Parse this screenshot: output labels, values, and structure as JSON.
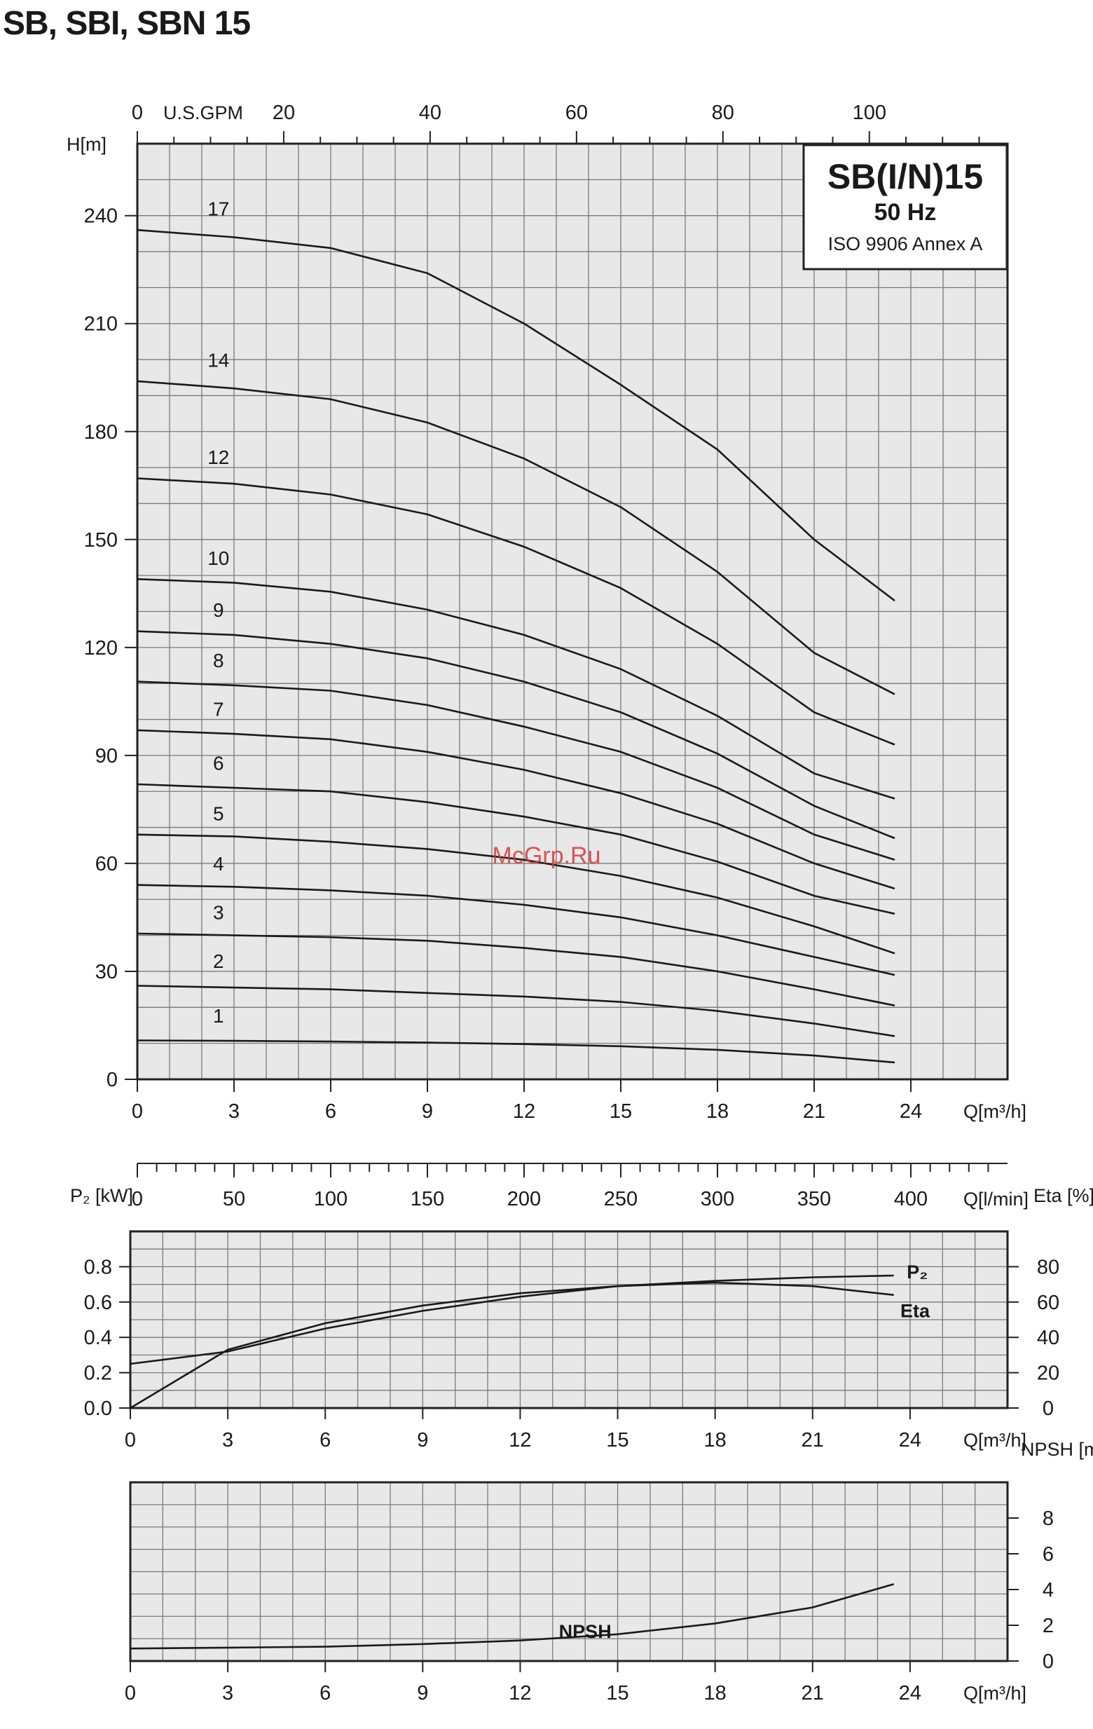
{
  "page": {
    "heading": "SB, SBI, SBN 15"
  },
  "chart_data": [
    {
      "type": "line",
      "title": "SB(I/N)15",
      "subtitle": "50 Hz",
      "note": "ISO 9906 Annex A",
      "xlabel": "Q[m³/h]",
      "ylabel": "H[m]",
      "xlim": [
        0,
        27
      ],
      "ylim": [
        0,
        260
      ],
      "xticks": [
        0,
        3,
        6,
        9,
        12,
        15,
        18,
        21,
        24
      ],
      "yticks": [
        0,
        30,
        60,
        90,
        120,
        150,
        180,
        210,
        240
      ],
      "grid": true,
      "secondary_x_top": {
        "label": "U.S.GPM",
        "ticks": [
          0,
          20,
          40,
          60,
          80,
          100
        ]
      },
      "secondary_x_bottom": {
        "label": "Q[l/min]",
        "ticks": [
          0,
          50,
          100,
          150,
          200,
          250,
          300,
          350,
          400
        ]
      },
      "x": [
        0,
        3,
        6,
        9,
        12,
        15,
        18,
        21,
        23.5
      ],
      "series": [
        {
          "name": "1",
          "values": [
            10.8,
            10.7,
            10.5,
            10.2,
            9.8,
            9.2,
            8.2,
            6.6,
            4.7
          ]
        },
        {
          "name": "2",
          "values": [
            26,
            25.5,
            25,
            24,
            23,
            21.5,
            19,
            15.5,
            12
          ]
        },
        {
          "name": "3",
          "values": [
            40.5,
            40,
            39.5,
            38.5,
            36.5,
            34,
            30,
            25,
            20.5
          ]
        },
        {
          "name": "4",
          "values": [
            54,
            53.5,
            52.5,
            51,
            48.5,
            45,
            40,
            34,
            29
          ]
        },
        {
          "name": "5",
          "values": [
            68,
            67.5,
            66,
            64,
            61,
            56.5,
            50.5,
            42.5,
            35
          ]
        },
        {
          "name": "6",
          "values": [
            82,
            81,
            80,
            77,
            73,
            68,
            60.5,
            51,
            46
          ]
        },
        {
          "name": "7",
          "values": [
            97,
            96,
            94.5,
            91,
            86,
            79.5,
            71,
            60,
            53
          ]
        },
        {
          "name": "8",
          "values": [
            110.5,
            109.5,
            108,
            104,
            98,
            91,
            81,
            68,
            61
          ]
        },
        {
          "name": "9",
          "values": [
            124.5,
            123.5,
            121,
            117,
            110.5,
            102,
            90.5,
            76,
            67
          ]
        },
        {
          "name": "10",
          "values": [
            139,
            138,
            135.5,
            130.5,
            123.5,
            114,
            101,
            85,
            78
          ]
        },
        {
          "name": "12",
          "values": [
            167,
            165.5,
            162.5,
            157,
            148,
            136.5,
            121,
            102,
            93
          ]
        },
        {
          "name": "14",
          "values": [
            194,
            192,
            189,
            182.5,
            172.5,
            159,
            141,
            118.5,
            107
          ]
        },
        {
          "name": "17",
          "values": [
            236,
            234,
            231,
            224,
            210,
            193,
            175,
            150,
            133
          ]
        }
      ]
    },
    {
      "type": "line",
      "xlabel": "Q[m³/h]",
      "ylabel": "P₂ [kW]",
      "ylabel_right": "Eta [%]",
      "xlim": [
        0,
        27
      ],
      "ylim": [
        0,
        1.0
      ],
      "ylim_right": [
        0,
        100
      ],
      "xticks": [
        0,
        3,
        6,
        9,
        12,
        15,
        18,
        21,
        24
      ],
      "yticks": [
        0.0,
        0.2,
        0.4,
        0.6,
        0.8
      ],
      "yticks_right": [
        0,
        20,
        40,
        60,
        80
      ],
      "grid": true,
      "x": [
        0,
        3,
        6,
        9,
        12,
        15,
        18,
        21,
        23.5
      ],
      "series": [
        {
          "name": "P₂",
          "axis": "left",
          "values": [
            0.25,
            0.32,
            0.45,
            0.55,
            0.63,
            0.69,
            0.72,
            0.74,
            0.75
          ]
        },
        {
          "name": "Eta",
          "axis": "right",
          "values": [
            0,
            33,
            48,
            58,
            65,
            69,
            71,
            69,
            64
          ]
        }
      ]
    },
    {
      "type": "line",
      "xlabel": "Q[m³/h]",
      "ylabel_right": "NPSH [m]",
      "xlim": [
        0,
        27
      ],
      "ylim_right": [
        0,
        10
      ],
      "xticks": [
        0,
        3,
        6,
        9,
        12,
        15,
        18,
        21,
        24
      ],
      "yticks_right": [
        0,
        2,
        4,
        6,
        8
      ],
      "grid": true,
      "x": [
        0,
        3,
        6,
        9,
        12,
        15,
        18,
        21,
        23.5
      ],
      "series": [
        {
          "name": "NPSH",
          "values": [
            0.7,
            0.75,
            0.8,
            0.95,
            1.15,
            1.5,
            2.1,
            3.0,
            4.3
          ]
        }
      ]
    }
  ],
  "watermark": "McGrp.Ru"
}
